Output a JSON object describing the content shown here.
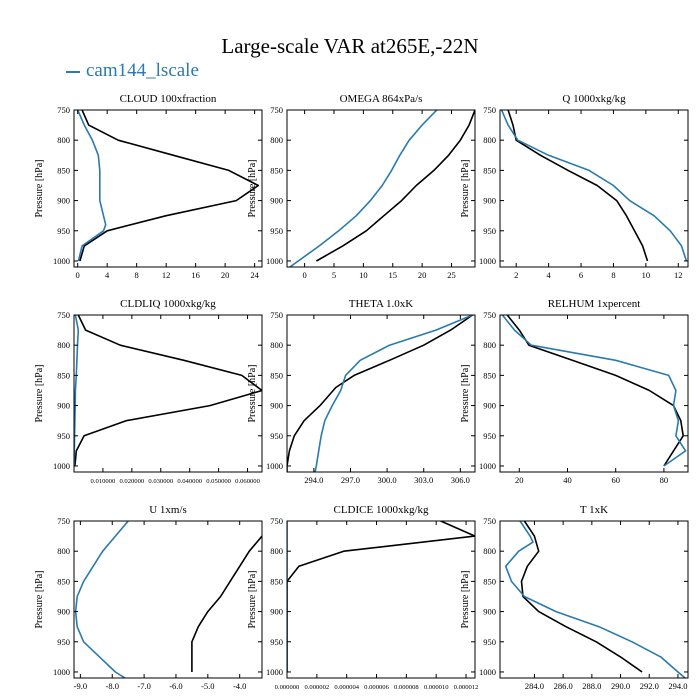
{
  "title": "Large-scale VAR at265E,-22N",
  "legend": {
    "label": "cam144_lscale",
    "color": "#2a7ab0"
  },
  "colors": {
    "model": "#2a7ab0",
    "obs": "#000000"
  },
  "ylabel": "Pressure [hPa]",
  "ylim": [
    1010,
    750
  ],
  "yticks": [
    750,
    800,
    850,
    900,
    950,
    1000
  ],
  "chart_data": [
    {
      "type": "line",
      "title": "CLOUD 100xfraction",
      "xlim": [
        -0.5,
        25
      ],
      "xticks": [
        0,
        4,
        8,
        12,
        16,
        20,
        24
      ],
      "xtick_labels": [
        "0",
        "4",
        "8",
        "12",
        "16",
        "20",
        "24"
      ],
      "series": [
        {
          "p": [
            750,
            775,
            800,
            825,
            850,
            875,
            900,
            925,
            950,
            975,
            1000
          ],
          "x": [
            0.6,
            1.5,
            5.5,
            13.0,
            20.5,
            24.5,
            21.5,
            12.0,
            4.0,
            0.9,
            0.3
          ]
        },
        {
          "p": [
            750,
            775,
            800,
            825,
            850,
            875,
            900,
            925,
            940,
            950,
            975,
            1000
          ],
          "x": [
            0,
            0.9,
            2.0,
            2.8,
            3.0,
            3.0,
            3.0,
            3.5,
            3.8,
            3.5,
            0.6,
            0.1
          ]
        }
      ]
    },
    {
      "type": "line",
      "title": "OMEGA 864xPa/s",
      "xlim": [
        -3,
        29
      ],
      "xticks": [
        0,
        5,
        10,
        15,
        20,
        25
      ],
      "xtick_labels": [
        "0",
        "5",
        "10",
        "15",
        "20",
        "25"
      ],
      "series": [
        {
          "p": [
            750,
            775,
            800,
            825,
            850,
            875,
            900,
            925,
            950,
            975,
            1000
          ],
          "x": [
            29,
            28,
            26.5,
            24.5,
            22,
            19,
            16.5,
            13.5,
            10.5,
            6.5,
            2
          ]
        },
        {
          "p": [
            750,
            775,
            800,
            825,
            850,
            875,
            900,
            925,
            950,
            975,
            1010
          ],
          "x": [
            22.5,
            20,
            17.8,
            16.2,
            14.8,
            13.2,
            11.2,
            8.8,
            5.8,
            2.5,
            -2.5
          ]
        }
      ]
    },
    {
      "type": "line",
      "title": "Q 1000xkg/kg",
      "xlim": [
        1,
        12.6
      ],
      "xticks": [
        2,
        4,
        6,
        8,
        10,
        12
      ],
      "xtick_labels": [
        "2",
        "4",
        "6",
        "8",
        "10",
        "12"
      ],
      "series": [
        {
          "p": [
            750,
            775,
            800,
            825,
            850,
            875,
            900,
            925,
            950,
            975,
            1000
          ],
          "x": [
            1.5,
            1.8,
            2.0,
            3.5,
            5.2,
            7.0,
            8.2,
            8.8,
            9.3,
            9.8,
            10.1
          ]
        },
        {
          "p": [
            750,
            775,
            800,
            825,
            850,
            875,
            900,
            925,
            950,
            975,
            1000
          ],
          "x": [
            1.1,
            1.5,
            2.1,
            4.0,
            6.5,
            8.0,
            9.0,
            10.5,
            11.5,
            12.2,
            12.5
          ]
        }
      ]
    },
    {
      "type": "line",
      "title": "CLDLIQ 1000xkg/kg",
      "xlim": [
        0,
        0.065
      ],
      "xticks": [
        0.01,
        0.02,
        0.03,
        0.04,
        0.05,
        0.06
      ],
      "xtick_labels": [
        "0.010000",
        "0.020000",
        "0.030000",
        "0.040000",
        "0.050000",
        "0.060000"
      ],
      "series": [
        {
          "p": [
            750,
            775,
            800,
            825,
            850,
            875,
            900,
            925,
            950,
            975,
            1000
          ],
          "x": [
            0.0015,
            0.004,
            0.016,
            0.038,
            0.058,
            0.065,
            0.047,
            0.018,
            0.0035,
            0.0008,
            0.0003
          ]
        },
        {
          "p": [
            750,
            775,
            800,
            825,
            850,
            875,
            900,
            925,
            950,
            975,
            1000
          ],
          "x": [
            0.0005,
            0.0015,
            0.0012,
            0.001,
            0.0008,
            0.0005,
            0.0004,
            0.0003,
            0.0002,
            0.0001,
            0.0001
          ]
        }
      ]
    },
    {
      "type": "line",
      "title": "THETA 1.0xK",
      "xlim": [
        291.8,
        307.2
      ],
      "xticks": [
        294.0,
        297.0,
        300.0,
        303.0,
        306.0
      ],
      "xtick_labels": [
        "294.0",
        "297.0",
        "300.0",
        "303.0",
        "306.0"
      ],
      "series": [
        {
          "p": [
            750,
            775,
            800,
            825,
            850,
            870,
            900,
            925,
            950,
            975,
            1000,
            1010
          ],
          "x": [
            307.0,
            305.2,
            303.0,
            300.2,
            297.3,
            295.8,
            294.5,
            293.2,
            292.4,
            292.0,
            291.8,
            291.8
          ]
        },
        {
          "p": [
            750,
            775,
            800,
            825,
            850,
            875,
            900,
            925,
            950,
            975,
            1000,
            1010
          ],
          "x": [
            307.0,
            304.0,
            300.2,
            297.8,
            296.6,
            296.2,
            295.5,
            294.9,
            294.6,
            294.4,
            294.2,
            294.1
          ]
        }
      ]
    },
    {
      "type": "line",
      "title": "RELHUM 1xpercent",
      "xlim": [
        12,
        90
      ],
      "xticks": [
        20,
        40,
        60,
        80
      ],
      "xtick_labels": [
        "20",
        "40",
        "60",
        "80"
      ],
      "series": [
        {
          "p": [
            750,
            775,
            800,
            825,
            850,
            875,
            900,
            925,
            950,
            975,
            1000
          ],
          "x": [
            15,
            20,
            24,
            42,
            60,
            74,
            84,
            87,
            88,
            84,
            80
          ]
        },
        {
          "p": [
            750,
            775,
            800,
            825,
            850,
            875,
            900,
            925,
            950,
            975,
            1000
          ],
          "x": [
            13,
            18,
            25,
            60,
            82,
            85,
            84,
            86,
            85,
            89,
            80
          ]
        }
      ]
    },
    {
      "type": "line",
      "title": "U 1xm/s",
      "xlim": [
        -9.2,
        -3.3
      ],
      "xticks": [
        -9.0,
        -8.0,
        -7.0,
        -6.0,
        -5.0,
        -4.0
      ],
      "xtick_labels": [
        "-9.0",
        "-8.0",
        "-7.0",
        "-6.0",
        "-5.0",
        "-4.0"
      ],
      "series": [
        {
          "p": [
            775,
            800,
            825,
            850,
            875,
            900,
            925,
            950,
            975,
            1000
          ],
          "x": [
            -3.3,
            -3.7,
            -4.0,
            -4.3,
            -4.6,
            -5.0,
            -5.3,
            -5.5,
            -5.5,
            -5.5
          ]
        },
        {
          "p": [
            750,
            775,
            800,
            825,
            850,
            875,
            900,
            925,
            950,
            975,
            1000,
            1010
          ],
          "x": [
            -7.5,
            -7.9,
            -8.3,
            -8.6,
            -8.9,
            -9.1,
            -9.15,
            -9.1,
            -8.9,
            -8.4,
            -7.9,
            -7.6
          ]
        }
      ]
    },
    {
      "type": "line",
      "title": "CLDICE 1000xkg/kg",
      "xlim": [
        0,
        1.26e-05
      ],
      "xticks": [
        0,
        2e-06,
        4e-06,
        6e-06,
        8e-06,
        1e-05,
        1.2e-05
      ],
      "xtick_labels": [
        "0.000000",
        "0.000002",
        "0.000004",
        "0.000006",
        "0.000008",
        "0.000010",
        "0.000012"
      ],
      "series": [
        {
          "p": [
            750,
            775,
            800,
            825,
            850,
            875,
            900,
            925,
            950,
            975,
            1000
          ],
          "x": [
            1.03e-05,
            1.26e-05,
            3.8e-06,
            8e-07,
            0,
            0,
            0,
            0,
            0,
            0,
            0
          ]
        },
        {
          "p": [
            750,
            775,
            800,
            825,
            850,
            875,
            900,
            925,
            950,
            975,
            1000
          ],
          "x": [
            0,
            0,
            0,
            0,
            0,
            0,
            0,
            0,
            0,
            0,
            0
          ]
        }
      ]
    },
    {
      "type": "line",
      "title": "T 1xK",
      "xlim": [
        281.6,
        294.7
      ],
      "xticks": [
        284.0,
        286.0,
        288.0,
        290.0,
        292.0,
        294.0
      ],
      "xtick_labels": [
        "284.0",
        "286.0",
        "288.0",
        "290.0",
        "292.0",
        "294.0"
      ],
      "series": [
        {
          "p": [
            750,
            775,
            800,
            825,
            850,
            875,
            900,
            925,
            950,
            975,
            1000
          ],
          "x": [
            283.3,
            284.0,
            284.3,
            283.5,
            283.1,
            283.2,
            284.3,
            286.2,
            288.3,
            290.0,
            291.5
          ]
        },
        {
          "p": [
            750,
            775,
            785,
            800,
            825,
            850,
            875,
            900,
            925,
            950,
            975,
            1000,
            1010
          ],
          "x": [
            283.0,
            283.7,
            283.9,
            282.9,
            282.0,
            282.4,
            283.3,
            285.5,
            288.5,
            290.8,
            292.8,
            294.0,
            294.5
          ]
        }
      ]
    }
  ]
}
